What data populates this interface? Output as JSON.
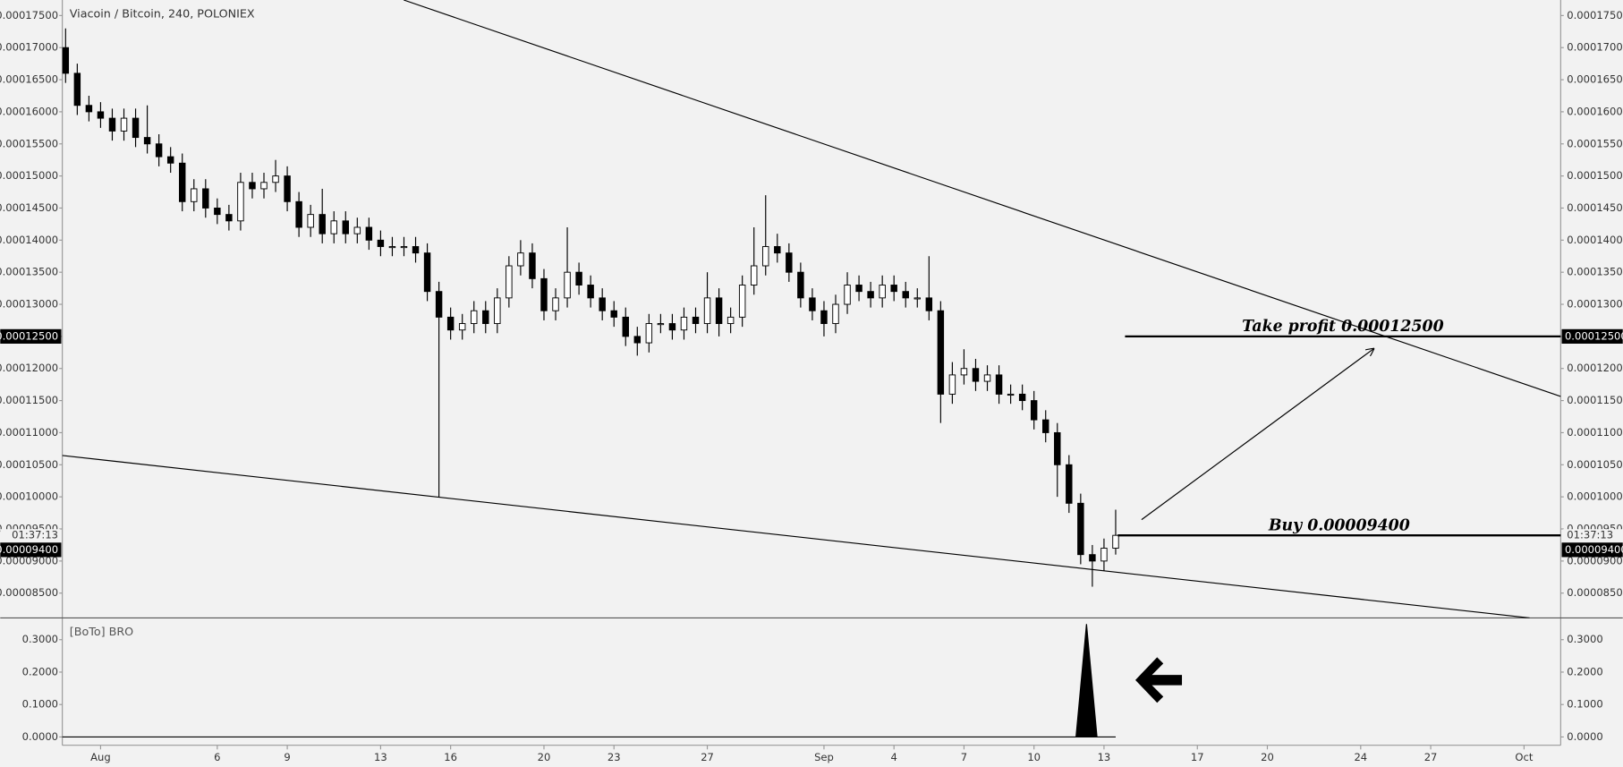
{
  "chart_data": [
    {
      "type": "candlestick",
      "title": "Viacoin / Bitcoin, 240, POLONIEX",
      "xlim": [
        -1.64,
        62.57
      ],
      "xticks": [
        {
          "value": 0,
          "label": "Aug"
        },
        {
          "value": 5,
          "label": "6"
        },
        {
          "value": 8,
          "label": "9"
        },
        {
          "value": 12,
          "label": "13"
        },
        {
          "value": 15,
          "label": "16"
        },
        {
          "value": 19,
          "label": "20"
        },
        {
          "value": 22,
          "label": "23"
        },
        {
          "value": 26,
          "label": "27"
        },
        {
          "value": 31,
          "label": "Sep"
        },
        {
          "value": 34,
          "label": "4"
        },
        {
          "value": 37,
          "label": "7"
        },
        {
          "value": 40,
          "label": "10"
        },
        {
          "value": 43,
          "label": "13"
        },
        {
          "value": 47,
          "label": "17"
        },
        {
          "value": 50,
          "label": "20"
        },
        {
          "value": 54,
          "label": "24"
        },
        {
          "value": 57,
          "label": "27"
        },
        {
          "value": 61,
          "label": "Oct"
        }
      ],
      "ylim": [
        8.113e-05,
        0.00017742
      ],
      "yticks": [
        {
          "value": 8.5e-05,
          "label": "0.00008500"
        },
        {
          "value": 9e-05,
          "label": "0.00009000"
        },
        {
          "value": 9.5e-05,
          "label": "0.00009500"
        },
        {
          "value": 0.0001,
          "label": "0.00010000"
        },
        {
          "value": 0.000105,
          "label": "0.00010500"
        },
        {
          "value": 0.00011,
          "label": "0.00011000"
        },
        {
          "value": 0.000115,
          "label": "0.00011500"
        },
        {
          "value": 0.00012,
          "label": "0.00012000"
        },
        {
          "value": 0.000125,
          "label": "0.00012500"
        },
        {
          "value": 0.00013,
          "label": "0.00013000"
        },
        {
          "value": 0.000135,
          "label": "0.00013500"
        },
        {
          "value": 0.00014,
          "label": "0.00014000"
        },
        {
          "value": 0.000145,
          "label": "0.00014500"
        },
        {
          "value": 0.00015,
          "label": "0.00015000"
        },
        {
          "value": 0.000155,
          "label": "0.00015500"
        },
        {
          "value": 0.00016,
          "label": "0.00016000"
        },
        {
          "value": 0.000165,
          "label": "0.00016500"
        },
        {
          "value": 0.00017,
          "label": "0.00017000"
        },
        {
          "value": 0.000175,
          "label": "0.00017500"
        }
      ],
      "up_color": "#ffffff",
      "down_color": "#000000",
      "edge_color": "#000000",
      "x": [
        -1.5,
        -1,
        -0.5,
        0,
        0.5,
        1,
        1.5,
        2,
        2.5,
        3,
        3.5,
        4,
        4.5,
        5,
        5.5,
        6,
        6.5,
        7,
        7.5,
        8,
        8.5,
        9,
        9.5,
        10,
        10.5,
        11,
        11.5,
        12,
        12.5,
        13,
        13.5,
        14,
        14.5,
        15,
        15.5,
        16,
        16.5,
        17,
        17.5,
        18,
        18.5,
        19,
        19.5,
        20,
        20.5,
        21,
        21.5,
        22,
        22.5,
        23,
        23.5,
        24,
        24.5,
        25,
        25.5,
        26,
        26.5,
        27,
        27.5,
        28,
        28.5,
        29,
        29.5,
        30,
        30.5,
        31,
        31.5,
        32,
        32.5,
        33,
        33.5,
        34,
        34.5,
        35,
        35.5,
        36,
        36.5,
        37,
        37.5,
        38,
        38.5,
        39,
        39.5,
        40,
        40.5,
        41,
        41.5,
        42,
        42.5,
        43,
        43.5
      ],
      "open": [
        0.00017,
        0.000166,
        0.000161,
        0.00016,
        0.000159,
        0.000157,
        0.000159,
        0.000156,
        0.000155,
        0.000153,
        0.000152,
        0.000146,
        0.000148,
        0.000145,
        0.000144,
        0.000143,
        0.000149,
        0.000148,
        0.000149,
        0.00015,
        0.000146,
        0.000142,
        0.000144,
        0.000141,
        0.000143,
        0.000141,
        0.000142,
        0.00014,
        0.000139,
        0.000139,
        0.000139,
        0.000138,
        0.000132,
        0.000128,
        0.000126,
        0.000127,
        0.000129,
        0.000127,
        0.000131,
        0.000136,
        0.000138,
        0.000134,
        0.000129,
        0.000131,
        0.000135,
        0.000133,
        0.000131,
        0.000129,
        0.000128,
        0.000125,
        0.000124,
        0.000127,
        0.000127,
        0.000126,
        0.000128,
        0.000127,
        0.000131,
        0.000127,
        0.000128,
        0.000133,
        0.000136,
        0.000139,
        0.000138,
        0.000135,
        0.000131,
        0.000129,
        0.000127,
        0.00013,
        0.000133,
        0.000132,
        0.000131,
        0.000133,
        0.000132,
        0.000131,
        0.000131,
        0.000129,
        0.000116,
        0.000119,
        0.00012,
        0.000118,
        0.000119,
        0.000116,
        0.000116,
        0.000115,
        0.000112,
        0.00011,
        0.000105,
        9.9e-05,
        9.1e-05,
        9e-05,
        9.2e-05
      ],
      "high": [
        0.000173,
        0.0001675,
        0.0001625,
        0.0001615,
        0.0001605,
        0.0001605,
        0.0001605,
        0.000161,
        0.0001565,
        0.0001545,
        0.0001535,
        0.0001495,
        0.0001495,
        0.0001465,
        0.0001455,
        0.0001505,
        0.0001505,
        0.0001505,
        0.0001525,
        0.0001515,
        0.0001475,
        0.0001455,
        0.000148,
        0.0001445,
        0.0001445,
        0.0001435,
        0.0001435,
        0.0001415,
        0.0001405,
        0.0001405,
        0.0001405,
        0.0001395,
        0.0001335,
        0.0001295,
        0.0001285,
        0.0001305,
        0.0001305,
        0.0001325,
        0.0001375,
        0.00014,
        0.0001395,
        0.0001355,
        0.0001325,
        0.000142,
        0.0001365,
        0.0001345,
        0.0001325,
        0.0001305,
        0.0001295,
        0.0001265,
        0.0001285,
        0.0001285,
        0.0001285,
        0.0001295,
        0.0001295,
        0.000135,
        0.0001325,
        0.0001295,
        0.0001345,
        0.000142,
        0.000147,
        0.000141,
        0.0001395,
        0.0001365,
        0.0001325,
        0.0001305,
        0.0001315,
        0.000135,
        0.0001345,
        0.0001335,
        0.0001345,
        0.0001345,
        0.0001335,
        0.0001325,
        0.0001375,
        0.0001305,
        0.000121,
        0.000123,
        0.0001215,
        0.0001205,
        0.0001205,
        0.0001175,
        0.0001175,
        0.0001165,
        0.0001135,
        0.0001115,
        0.0001065,
        0.0001005,
        9.25e-05,
        9.35e-05,
        9.8e-05
      ],
      "low": [
        0.0001645,
        0.0001595,
        0.0001585,
        0.0001575,
        0.0001555,
        0.0001555,
        0.0001545,
        0.0001535,
        0.0001515,
        0.0001505,
        0.0001445,
        0.0001445,
        0.0001435,
        0.0001425,
        0.0001415,
        0.0001415,
        0.0001465,
        0.0001465,
        0.0001475,
        0.0001445,
        0.0001405,
        0.0001405,
        0.0001395,
        0.0001395,
        0.0001395,
        0.0001395,
        0.0001385,
        0.0001375,
        0.0001375,
        0.0001375,
        0.0001365,
        0.0001305,
        0.0001,
        0.0001245,
        0.0001245,
        0.0001255,
        0.0001255,
        0.0001255,
        0.0001295,
        0.0001345,
        0.0001325,
        0.0001275,
        0.0001275,
        0.0001295,
        0.0001315,
        0.0001295,
        0.0001275,
        0.0001265,
        0.0001235,
        0.000122,
        0.0001225,
        0.0001255,
        0.0001245,
        0.0001245,
        0.0001255,
        0.0001255,
        0.000125,
        0.0001255,
        0.0001265,
        0.0001315,
        0.0001345,
        0.0001365,
        0.0001335,
        0.0001295,
        0.0001275,
        0.000125,
        0.0001255,
        0.0001285,
        0.0001305,
        0.0001295,
        0.0001295,
        0.0001305,
        0.0001295,
        0.0001295,
        0.0001275,
        0.0001115,
        0.0001145,
        0.0001175,
        0.0001165,
        0.0001165,
        0.0001145,
        0.0001145,
        0.0001135,
        0.0001105,
        0.0001085,
        0.0001,
        9.75e-05,
        8.95e-05,
        8.6e-05,
        8.85e-05,
        9.1e-05
      ],
      "close": [
        0.000166,
        0.000161,
        0.00016,
        0.000159,
        0.000157,
        0.000159,
        0.000156,
        0.000155,
        0.000153,
        0.000152,
        0.000146,
        0.000148,
        0.000145,
        0.000144,
        0.000143,
        0.000149,
        0.000148,
        0.000149,
        0.00015,
        0.000146,
        0.000142,
        0.000144,
        0.000141,
        0.000143,
        0.000141,
        0.000142,
        0.00014,
        0.000139,
        0.000139,
        0.000139,
        0.000138,
        0.000132,
        0.000128,
        0.000126,
        0.000127,
        0.000129,
        0.000127,
        0.000131,
        0.000136,
        0.000138,
        0.000134,
        0.000129,
        0.000131,
        0.000135,
        0.000133,
        0.000131,
        0.000129,
        0.000128,
        0.000125,
        0.000124,
        0.000127,
        0.000127,
        0.000126,
        0.000128,
        0.000127,
        0.000131,
        0.000127,
        0.000128,
        0.000133,
        0.000136,
        0.000139,
        0.000138,
        0.000135,
        0.000131,
        0.000129,
        0.000127,
        0.00013,
        0.000133,
        0.000132,
        0.000131,
        0.000133,
        0.000132,
        0.000131,
        0.000131,
        0.000129,
        0.000116,
        0.000119,
        0.00012,
        0.000118,
        0.000119,
        0.000116,
        0.000116,
        0.000115,
        0.000112,
        0.00011,
        0.000105,
        9.9e-05,
        9.1e-05,
        9e-05,
        9.2e-05,
        9.4e-05
      ],
      "trendlines": [
        {
          "x": [
            12.99,
            62.57
          ],
          "y": [
            0.00017742,
            0.00011565
          ]
        },
        {
          "x": [
            -1.64,
            61.24
          ],
          "y": [
            0.00010645,
            8.113e-05
          ]
        }
      ],
      "arrow": {
        "x": [
          44.61,
          54.55
        ],
        "y": [
          9.645e-05,
          0.00012306
        ]
      },
      "levels": [
        {
          "text": "Take profit 0.00012500",
          "value": 0.000125,
          "axis_label": "0.00012500"
        },
        {
          "text": "Buy 0.00009400",
          "value": 9.4e-05,
          "axis_label": "0.00009400",
          "countdown": "01:37:13"
        }
      ]
    },
    {
      "type": "area",
      "title": "[BoTo] BRO",
      "ylim": [
        -0.0256,
        0.367
      ],
      "yticks": [
        {
          "value": 0,
          "label": "0.0000"
        },
        {
          "value": 0.1,
          "label": "0.1000"
        },
        {
          "value": 0.2,
          "label": "0.2000"
        },
        {
          "value": 0.3,
          "label": "0.3000"
        }
      ],
      "color": "#000000",
      "x": [
        -1.64,
        41.8,
        42.25,
        42.7,
        43.5
      ],
      "values": [
        0,
        0,
        0.348,
        0,
        0
      ]
    }
  ]
}
